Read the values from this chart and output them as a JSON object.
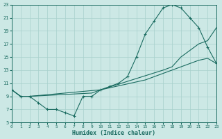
{
  "xlabel": "Humidex (Indice chaleur)",
  "bg_color": "#cce8e5",
  "grid_color": "#a8d0cc",
  "line_color": "#1a6b60",
  "xlim": [
    0,
    23
  ],
  "ylim": [
    5,
    23
  ],
  "xticks": [
    0,
    1,
    2,
    3,
    4,
    5,
    6,
    7,
    8,
    9,
    10,
    11,
    12,
    13,
    14,
    15,
    16,
    17,
    18,
    19,
    20,
    21,
    22,
    23
  ],
  "yticks": [
    5,
    7,
    9,
    11,
    13,
    15,
    17,
    19,
    21,
    23
  ],
  "line1_x": [
    0,
    1,
    2,
    3,
    4,
    5,
    6,
    7,
    8,
    9,
    10,
    11,
    12,
    13,
    14,
    15,
    16,
    17,
    18,
    19,
    20,
    21,
    22,
    23
  ],
  "line1_y": [
    10,
    9,
    9,
    8,
    7,
    7,
    6.5,
    6,
    9,
    9,
    10,
    10.5,
    11,
    12,
    15,
    18.5,
    20.5,
    22.5,
    23,
    22.5,
    21,
    19.5,
    16.5,
    14
  ],
  "line2_x": [
    0,
    1,
    2,
    10,
    15,
    17,
    18,
    19,
    20,
    21,
    22,
    23
  ],
  "line2_y": [
    10,
    9,
    9,
    10,
    11.5,
    12.5,
    13,
    13.5,
    14,
    14.5,
    14.8,
    14
  ],
  "line3_x": [
    0,
    1,
    2,
    9,
    10,
    17,
    18,
    19,
    20,
    21,
    22,
    23
  ],
  "line3_y": [
    10,
    9,
    9,
    9.5,
    10,
    13,
    13.5,
    15,
    16,
    17,
    17.5,
    19.5
  ]
}
